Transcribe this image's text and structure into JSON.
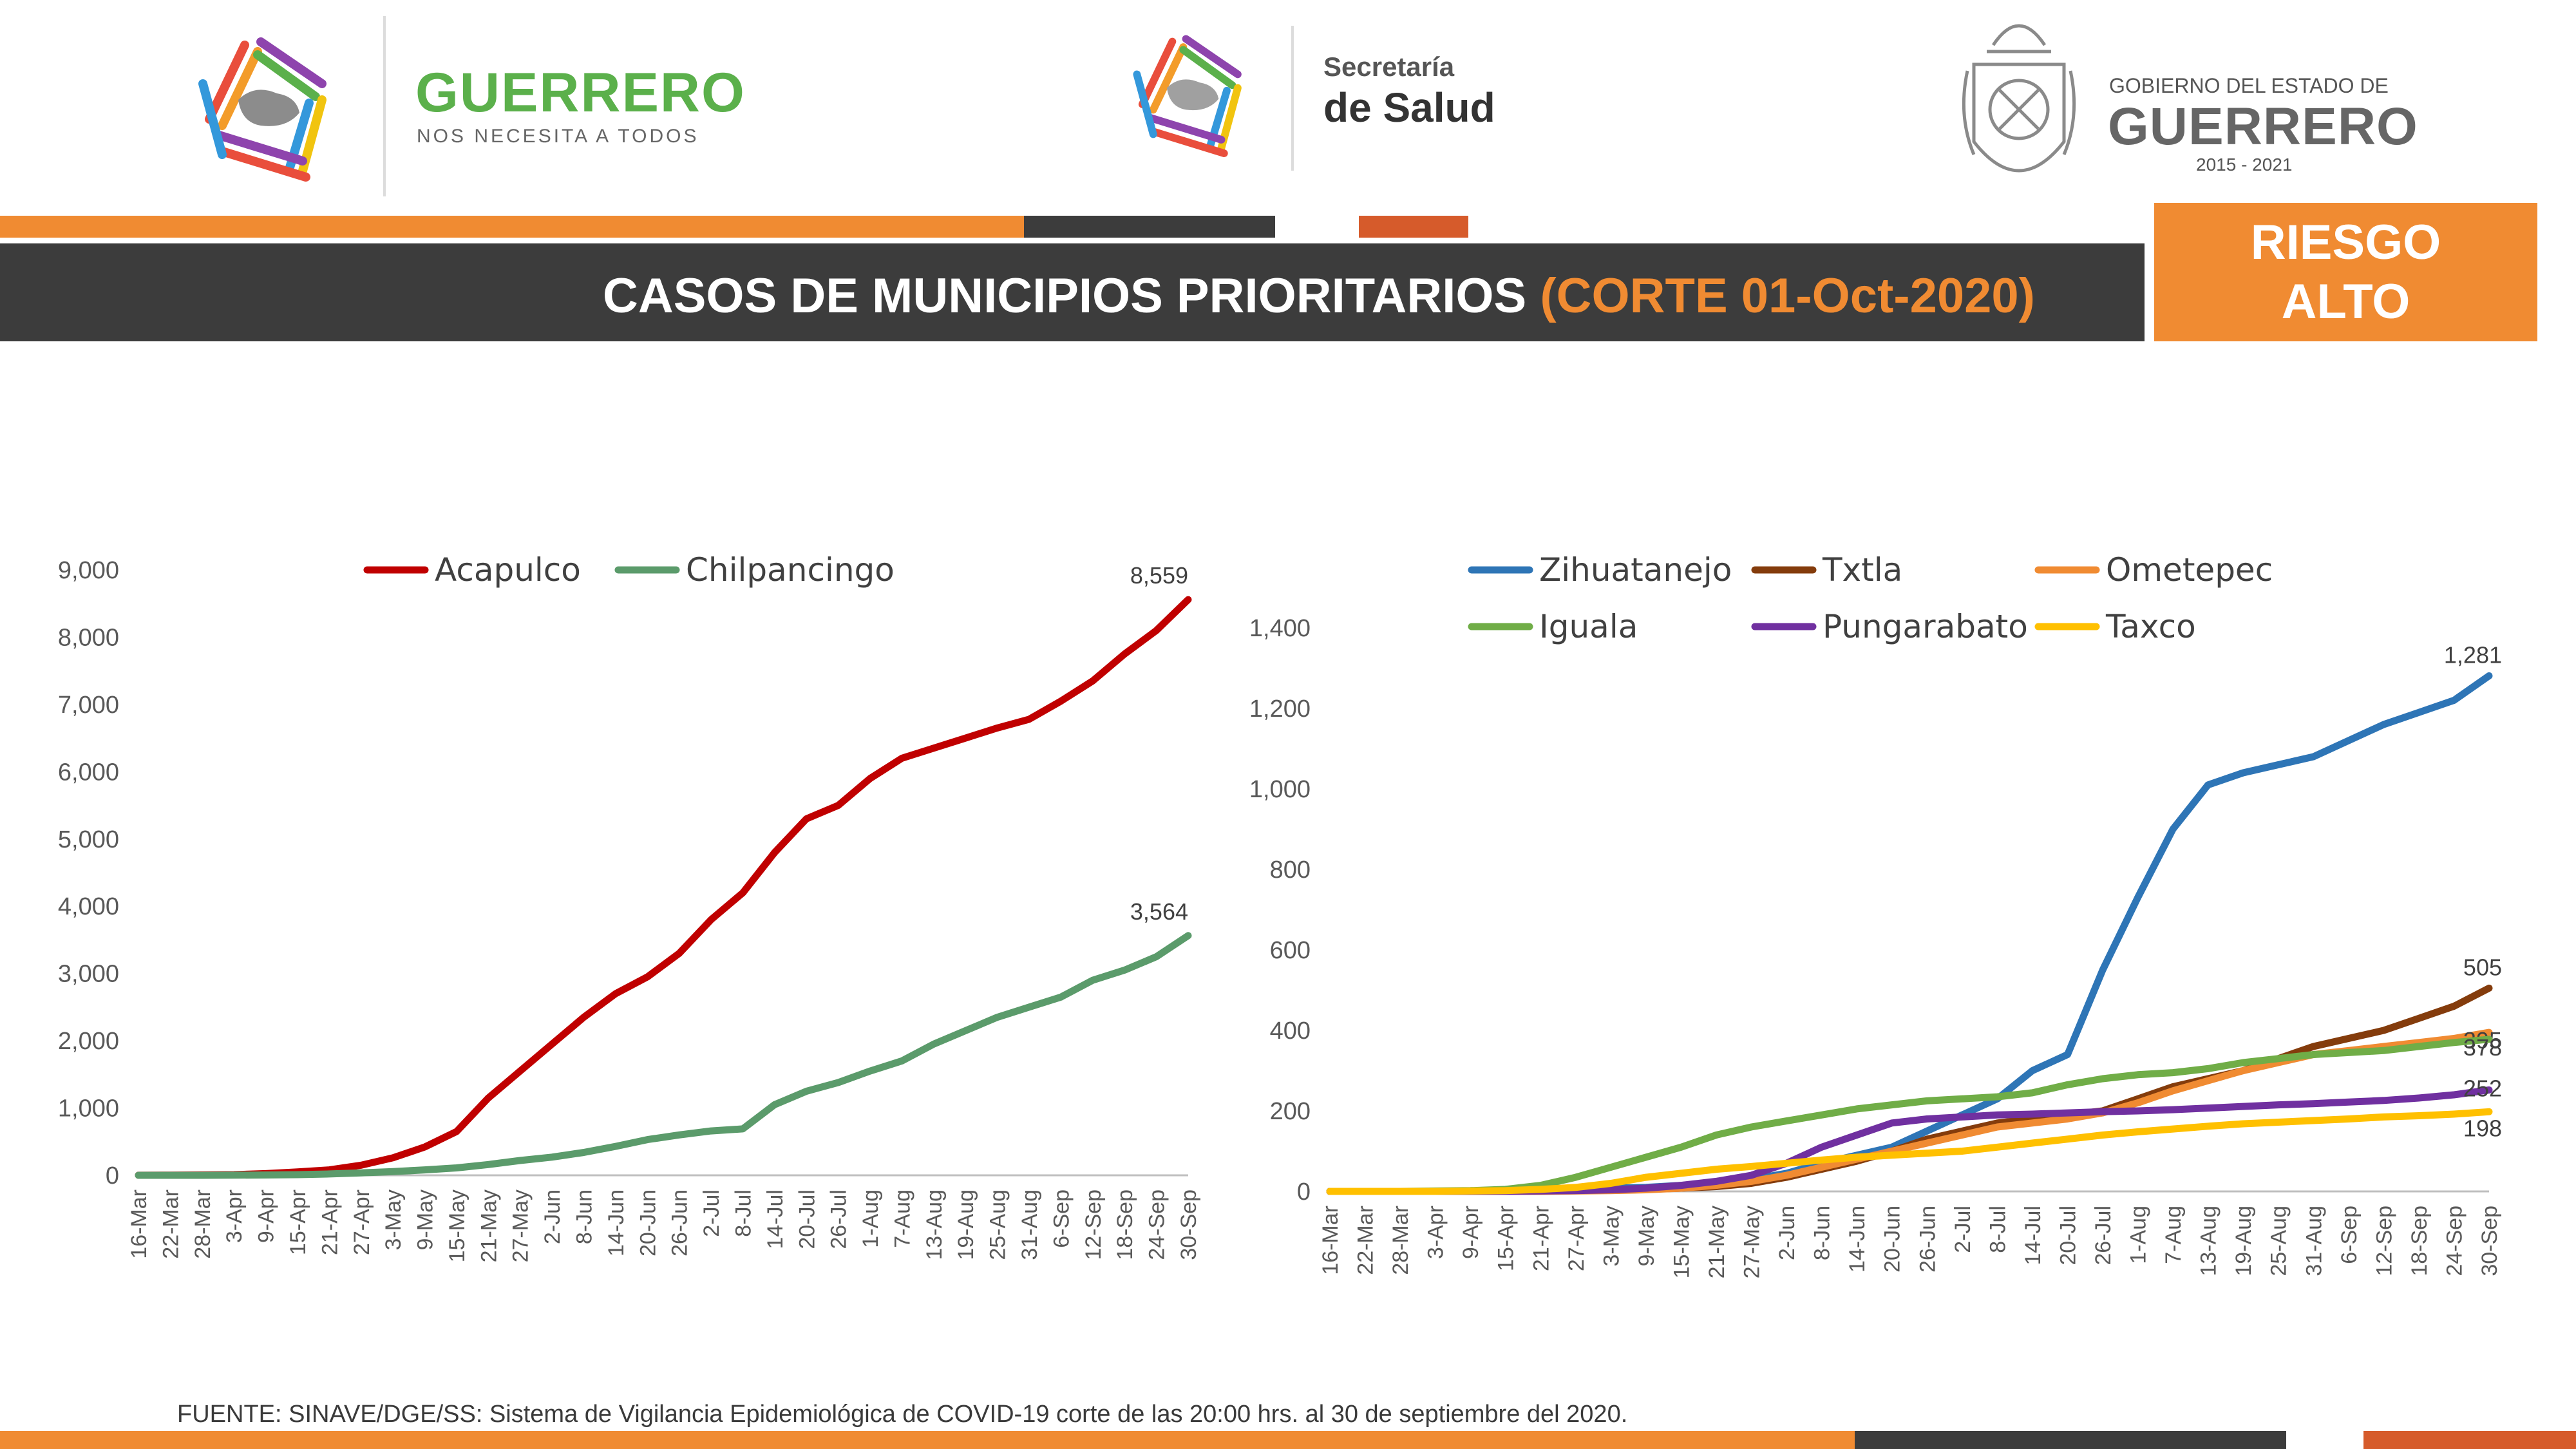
{
  "header": {
    "left_logo": {
      "name": "GUERRERO",
      "tagline": "NOS NECESITA A TODOS"
    },
    "center_logo": {
      "line1": "Secretaría",
      "line2": "de Salud"
    },
    "right_logo": {
      "line1": "GOBIERNO DEL ESTADO DE",
      "line2": "GUERRERO",
      "years": "2015 - 2021"
    },
    "title": "CASOS DE MUNICIPIOS PRIORITARIOS",
    "cutoff": "(CORTE 01-Oct-2020)",
    "risk_line1": "RIESGO",
    "risk_line2": "ALTO",
    "colors": {
      "orange": "#f08b32",
      "dark": "#3c3c3c",
      "rust": "#d65b2b"
    }
  },
  "footer": {
    "source": "FUENTE: SINAVE/DGE/SS: Sistema de Vigilancia Epidemiológica de COVID-19 corte de las 20:00 hrs. al 30 de septiembre del 2020."
  },
  "chart_data": [
    {
      "type": "line",
      "x_labels": [
        "16-Mar",
        "22-Mar",
        "28-Mar",
        "3-Apr",
        "9-Apr",
        "15-Apr",
        "21-Apr",
        "27-Apr",
        "3-May",
        "9-May",
        "15-May",
        "21-May",
        "27-May",
        "2-Jun",
        "8-Jun",
        "14-Jun",
        "20-Jun",
        "26-Jun",
        "2-Jul",
        "8-Jul",
        "14-Jul",
        "20-Jul",
        "26-Jul",
        "1-Aug",
        "7-Aug",
        "13-Aug",
        "19-Aug",
        "25-Aug",
        "31-Aug",
        "6-Sep",
        "12-Sep",
        "18-Sep",
        "24-Sep",
        "30-Sep"
      ],
      "ylim": [
        0,
        9000
      ],
      "y_ticks": [
        "0",
        "1,000",
        "2,000",
        "3,000",
        "4,000",
        "5,000",
        "6,000",
        "7,000",
        "8,000",
        "9,000"
      ],
      "legend_position": "top",
      "series": [
        {
          "name": "Acapulco",
          "color": "#c00000",
          "values": [
            1,
            3,
            5,
            10,
            25,
            50,
            80,
            150,
            260,
            420,
            650,
            1150,
            1550,
            1950,
            2350,
            2700,
            2950,
            3300,
            3800,
            4200,
            4800,
            5300,
            5500,
            5900,
            6200,
            6350,
            6500,
            6650,
            6780,
            7050,
            7350,
            7750,
            8100,
            8559
          ],
          "end_label": "8,559"
        },
        {
          "name": "Chilpancingo",
          "color": "#5b9b6b",
          "values": [
            0,
            0,
            0,
            2,
            5,
            10,
            20,
            35,
            55,
            80,
            110,
            160,
            220,
            270,
            340,
            430,
            530,
            600,
            660,
            690,
            1050,
            1250,
            1380,
            1550,
            1700,
            1950,
            2150,
            2350,
            2500,
            2650,
            2900,
            3050,
            3250,
            3564
          ],
          "end_label": "3,564"
        }
      ]
    },
    {
      "type": "line",
      "x_labels": [
        "16-Mar",
        "22-Mar",
        "28-Mar",
        "3-Apr",
        "9-Apr",
        "15-Apr",
        "21-Apr",
        "27-Apr",
        "3-May",
        "9-May",
        "15-May",
        "21-May",
        "27-May",
        "2-Jun",
        "8-Jun",
        "14-Jun",
        "20-Jun",
        "26-Jun",
        "2-Jul",
        "8-Jul",
        "14-Jul",
        "20-Jul",
        "26-Jul",
        "1-Aug",
        "7-Aug",
        "13-Aug",
        "19-Aug",
        "25-Aug",
        "31-Aug",
        "6-Sep",
        "12-Sep",
        "18-Sep",
        "24-Sep",
        "30-Sep"
      ],
      "ylim": [
        0,
        1400
      ],
      "y_ticks": [
        "0",
        "200",
        "400",
        "600",
        "800",
        "1,000",
        "1,200",
        "1,400"
      ],
      "legend_position": "top",
      "series": [
        {
          "name": "Zihuatanejo",
          "color": "#2e75b6",
          "values": [
            0,
            0,
            0,
            0,
            1,
            2,
            3,
            5,
            8,
            10,
            15,
            20,
            30,
            45,
            70,
            90,
            110,
            150,
            190,
            230,
            300,
            340,
            550,
            730,
            900,
            1010,
            1040,
            1060,
            1080,
            1120,
            1160,
            1190,
            1220,
            1281
          ],
          "end_label": "1,281"
        },
        {
          "name": "Txtla",
          "color": "#843c0c",
          "values": [
            0,
            0,
            0,
            0,
            0,
            0,
            1,
            2,
            3,
            5,
            8,
            12,
            20,
            35,
            55,
            75,
            100,
            130,
            150,
            170,
            180,
            190,
            200,
            230,
            260,
            280,
            300,
            330,
            360,
            380,
            400,
            430,
            460,
            505
          ],
          "end_label": "505"
        },
        {
          "name": "Ometepec",
          "color": "#f08b32",
          "values": [
            0,
            0,
            0,
            0,
            0,
            0,
            0,
            1,
            2,
            4,
            8,
            15,
            25,
            40,
            60,
            80,
            100,
            120,
            140,
            160,
            170,
            180,
            195,
            220,
            250,
            275,
            300,
            320,
            340,
            350,
            360,
            370,
            380,
            395
          ],
          "end_label": "395"
        },
        {
          "name": "Iguala",
          "color": "#70ad47",
          "values": [
            0,
            0,
            0,
            1,
            2,
            5,
            15,
            35,
            60,
            85,
            110,
            140,
            160,
            175,
            190,
            205,
            215,
            225,
            230,
            235,
            245,
            265,
            280,
            290,
            295,
            305,
            320,
            330,
            340,
            345,
            350,
            360,
            370,
            378
          ],
          "end_label": "378"
        },
        {
          "name": "Pungarabato",
          "color": "#7030a0",
          "values": [
            0,
            0,
            0,
            0,
            0,
            0,
            1,
            2,
            4,
            8,
            15,
            25,
            40,
            70,
            110,
            140,
            170,
            180,
            185,
            190,
            192,
            195,
            198,
            200,
            203,
            207,
            211,
            215,
            218,
            222,
            226,
            232,
            240,
            252
          ],
          "end_label": "252"
        },
        {
          "name": "Taxco",
          "color": "#ffc000",
          "values": [
            0,
            0,
            0,
            0,
            1,
            2,
            5,
            10,
            20,
            35,
            45,
            55,
            62,
            70,
            78,
            85,
            90,
            95,
            100,
            110,
            120,
            130,
            140,
            148,
            155,
            162,
            168,
            172,
            176,
            180,
            185,
            188,
            192,
            198
          ],
          "end_label": "198"
        }
      ]
    }
  ]
}
